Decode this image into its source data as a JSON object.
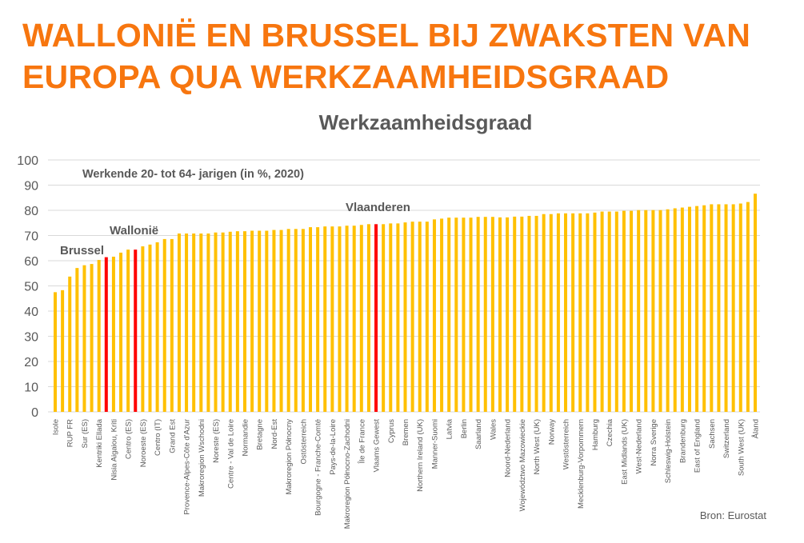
{
  "headline": {
    "line1": "WALLONIË EN BRUSSEL BIJ ZWAKSTEN VAN",
    "line2": "EUROPA QUA WERKZAAMHEIDSGRAAD"
  },
  "chart_data": {
    "type": "bar",
    "title": "Werkzaamheidsgraad",
    "subtitle": "Werkende 20- tot 64- jarigen (in %, 2020)",
    "source": "Bron: Eurostat",
    "ylim": [
      0,
      100
    ],
    "yticks": [
      0,
      10,
      20,
      30,
      40,
      50,
      60,
      70,
      80,
      90,
      100
    ],
    "grid": true,
    "bar_color": "#FFC000",
    "highlight_color": "#FF0000",
    "values": [
      47.5,
      48.3,
      53.7,
      57.1,
      58.2,
      58.7,
      60.3,
      61.4,
      61.6,
      63.2,
      64.4,
      64.4,
      65.7,
      66.4,
      67.3,
      68.6,
      68.6,
      70.8,
      70.8,
      70.8,
      70.8,
      70.8,
      71.2,
      71.2,
      71.5,
      71.7,
      71.7,
      71.9,
      71.9,
      71.9,
      72.2,
      72.2,
      72.6,
      72.6,
      72.6,
      73.3,
      73.3,
      73.6,
      73.6,
      73.6,
      73.9,
      73.9,
      74.2,
      74.5,
      74.5,
      74.5,
      74.8,
      74.8,
      75.2,
      75.5,
      75.5,
      75.5,
      76.4,
      76.7,
      77.1,
      77.1,
      77.1,
      77.1,
      77.4,
      77.4,
      77.4,
      77.2,
      77.2,
      77.5,
      77.5,
      77.8,
      77.8,
      78.5,
      78.5,
      78.8,
      78.8,
      78.8,
      78.8,
      78.8,
      79.1,
      79.5,
      79.5,
      79.5,
      79.8,
      79.8,
      80.1,
      80.1,
      80.1,
      80.1,
      80.4,
      80.8,
      81.1,
      81.4,
      81.7,
      82.0,
      82.4,
      82.4,
      82.4,
      82.4,
      82.7,
      83.3,
      86.6
    ],
    "tick_labels_every": 2,
    "tick_labels": [
      "Isole",
      "RUP FR",
      "Sur (ES)",
      "Kentriki Ellada",
      "Nisia Aigaiou, Kriti",
      "Centro (ES)",
      "Noroeste (ES)",
      "Centro (IT)",
      "Grand Est",
      "Provence-Alpes-Côte d'Azur",
      "Makroregion Wschodni",
      "Noreste (ES)",
      "Centre - Val de Loire",
      "Normandie",
      "Bretagne",
      "Nord-Est",
      "Makroregion Północny",
      "Ostösterreich",
      "Bourgogne - Franche-Comté",
      "Pays-de-la-Loire",
      "Makroregion Północno-Zachodni",
      "Île de France",
      "Vlaams Gewest",
      "Cyprus",
      "Bremen",
      "Northern Ireland (UK)",
      "Manner-Suomi",
      "Latvia",
      "Berlin",
      "Saarland",
      "Wales",
      "Noord-Nederland",
      "Województwo Mazowieckie",
      "North West (UK)",
      "Norway",
      "Westösterreich",
      "Mecklenburg-Vorpommern",
      "Hamburg",
      "Czechia",
      "East Midlands (UK)",
      "West-Nederland",
      "Norra Sverige",
      "Schleswig-Holstein",
      "Brandenburg",
      "East of England",
      "Sachsen",
      "Switzerland",
      "South West (UK)",
      "Åland"
    ],
    "highlights": [
      {
        "index": 7,
        "label": "Brussel"
      },
      {
        "index": 11,
        "label": "Wallonië"
      },
      {
        "index": 44,
        "label": "Vlaanderen"
      }
    ]
  }
}
